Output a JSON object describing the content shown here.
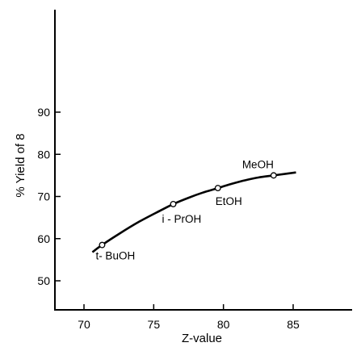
{
  "chart_data": {
    "type": "line",
    "title": "",
    "xlabel": "Z-value",
    "ylabel": "% Yield of 8",
    "xlim": [
      68,
      87
    ],
    "ylim": [
      45,
      95
    ],
    "xticks": [
      "70",
      "75",
      "80",
      "85"
    ],
    "yticks": [
      "50",
      "60",
      "70",
      "80",
      "90"
    ],
    "grid": false,
    "legend": "none",
    "points": [
      {
        "label": "t- BuOH",
        "x": 71.3,
        "y": 58.5
      },
      {
        "label": "i - PrOH",
        "x": 76.4,
        "y": 68.2
      },
      {
        "label": "EtOH",
        "x": 79.6,
        "y": 72.0
      },
      {
        "label": "MeOH",
        "x": 83.6,
        "y": 75.0
      }
    ],
    "curve": {
      "x": [
        70.6,
        71.3,
        72.5,
        74.0,
        75.5,
        76.4,
        77.5,
        78.5,
        79.6,
        80.5,
        81.5,
        82.5,
        83.6,
        84.5,
        85.2
      ],
      "y": [
        56.8,
        58.5,
        61.1,
        64.1,
        66.7,
        68.2,
        69.7,
        70.9,
        72.0,
        72.9,
        73.8,
        74.5,
        75.0,
        75.4,
        75.7
      ]
    }
  }
}
